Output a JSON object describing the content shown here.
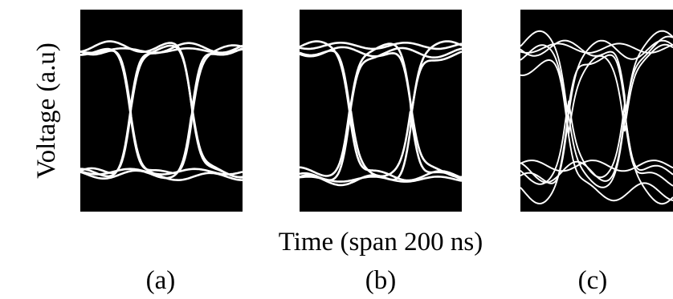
{
  "chart_data": {
    "type": "line",
    "ylabel": "Voltage (a.u)",
    "xlabel": "Time (span 200 ns)",
    "panels": [
      {
        "label": "(a)",
        "description": "eye diagram, wide open eye with two crossings",
        "background": "#000000",
        "trace_color": "#ffffff",
        "ringing": 0.35,
        "spread": 0.04,
        "traces": 8
      },
      {
        "label": "(b)",
        "description": "eye diagram, open eye with two crossings",
        "background": "#000000",
        "trace_color": "#ffffff",
        "ringing": 0.4,
        "spread": 0.05,
        "traces": 8
      },
      {
        "label": "(c)",
        "description": "eye diagram, partially closed eye with heavy ringing",
        "background": "#000000",
        "trace_color": "#ffffff",
        "ringing": 0.75,
        "spread": 0.18,
        "traces": 10
      }
    ]
  }
}
